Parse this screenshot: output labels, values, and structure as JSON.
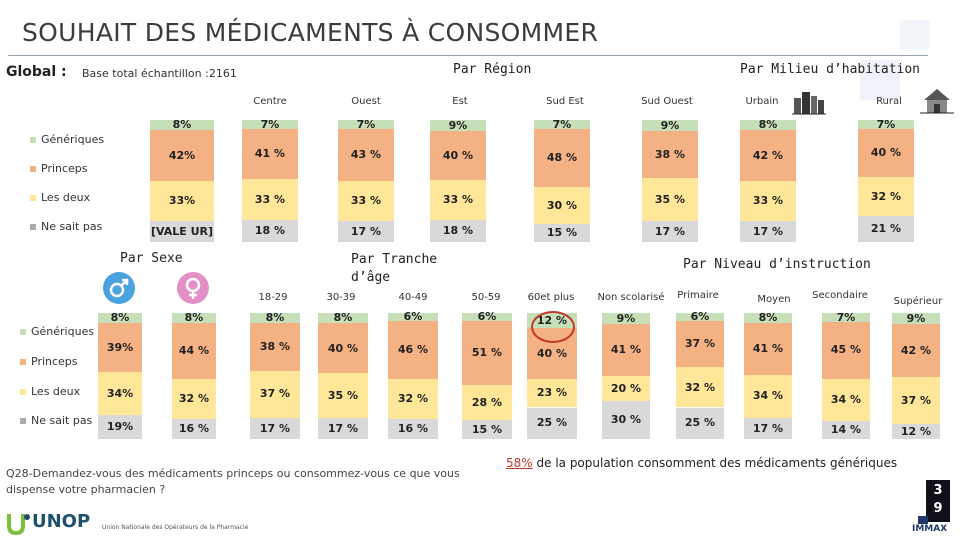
{
  "title": "SOUHAIT DES MÉDICAMENTS À CONSOMMER",
  "global": {
    "label": "Global :",
    "base": "Base total échantillon :2161"
  },
  "sections": {
    "region": "Par Région",
    "milieu": "Par Milieu d’habitation",
    "sexe": "Par Sexe",
    "tranche": "Par Tranche d’âge",
    "niveau": "Par Niveau d’instruction"
  },
  "legend": [
    "Génériques",
    "Princeps",
    "Les deux",
    "Ne sait pas"
  ],
  "colors": {
    "generiques": "#c6dfb9",
    "princeps": "#f4b183",
    "les_deux": "#ffe699",
    "ne_sait_pas": "#d9d9d9",
    "accent": "#c0392b"
  },
  "question": "Q28-Demandez-vous des médicaments princeps ou consommez-vous ce que vous dispense votre pharmacien ?",
  "note": {
    "pct": "58%",
    "text": "de la population consomment des médicaments génériques"
  },
  "page_number": {
    "a": "3",
    "b": "9"
  },
  "logos": {
    "unop": "UNOP",
    "unop_sub": "Union Nationale des Opérateurs de la Pharmacie",
    "immax": "IMMAX"
  },
  "icons": [
    "male-icon",
    "female-icon",
    "urban-icon",
    "rural-icon"
  ],
  "chart_data": [
    {
      "type": "bar",
      "stacked": true,
      "orientation": "vertical",
      "name_note": "Global",
      "categories": [
        "Global"
      ],
      "series": [
        {
          "name": "Génériques",
          "values": [
            8
          ],
          "labels": [
            "8%"
          ]
        },
        {
          "name": "Princeps",
          "values": [
            42
          ],
          "labels": [
            "42%"
          ]
        },
        {
          "name": "Les deux",
          "values": [
            33
          ],
          "labels": [
            "33%"
          ]
        },
        {
          "name": "Ne sait pas",
          "values": [
            17
          ],
          "labels": [
            "[VALE UR]"
          ]
        }
      ]
    },
    {
      "type": "bar",
      "stacked": true,
      "categories": [
        "Centre",
        "Ouest",
        "Est",
        "Sud Est",
        "Sud Ouest",
        "Urbain",
        "Rural"
      ],
      "series": [
        {
          "name": "Génériques",
          "values": [
            7,
            7,
            9,
            7,
            9,
            8,
            7
          ],
          "labels": [
            "7%",
            "7%",
            "9%",
            "7%",
            "9%",
            "8%",
            "7%"
          ]
        },
        {
          "name": "Princeps",
          "values": [
            41,
            43,
            40,
            48,
            38,
            42,
            40
          ],
          "labels": [
            "41 %",
            "43 %",
            "40 %",
            "48 %",
            "38 %",
            "42 %",
            "40 %"
          ]
        },
        {
          "name": "Les deux",
          "values": [
            33,
            33,
            33,
            30,
            35,
            33,
            32
          ],
          "labels": [
            "33 %",
            "33 %",
            "33 %",
            "30 %",
            "35 %",
            "33 %",
            "32 %"
          ]
        },
        {
          "name": "Ne sait pas",
          "values": [
            18,
            17,
            18,
            15,
            17,
            17,
            21
          ],
          "labels": [
            "18 %",
            "17 %",
            "18 %",
            "15 %",
            "17 %",
            "17 %",
            "21 %"
          ]
        }
      ]
    },
    {
      "type": "bar",
      "stacked": true,
      "categories": [
        "Homme",
        "Femme"
      ],
      "series": [
        {
          "name": "Génériques",
          "values": [
            8,
            8
          ],
          "labels": [
            "8%",
            "8%"
          ]
        },
        {
          "name": "Princeps",
          "values": [
            39,
            44
          ],
          "labels": [
            "39%",
            "44 %"
          ]
        },
        {
          "name": "Les deux",
          "values": [
            34,
            32
          ],
          "labels": [
            "34%",
            "32 %"
          ]
        },
        {
          "name": "Ne sait pas",
          "values": [
            19,
            16
          ],
          "labels": [
            "19%",
            "16 %"
          ]
        }
      ]
    },
    {
      "type": "bar",
      "stacked": true,
      "categories": [
        "18-29",
        "30-39",
        "40-49",
        "50-59",
        "60et plus"
      ],
      "series": [
        {
          "name": "Génériques",
          "values": [
            8,
            8,
            6,
            6,
            12
          ],
          "labels": [
            "8%",
            "8%",
            "6%",
            "6%",
            "12 %"
          ]
        },
        {
          "name": "Princeps",
          "values": [
            38,
            40,
            46,
            51,
            40
          ],
          "labels": [
            "38 %",
            "40 %",
            "46 %",
            "51 %",
            "40 %"
          ]
        },
        {
          "name": "Les deux",
          "values": [
            37,
            35,
            32,
            28,
            23
          ],
          "labels": [
            "37 %",
            "35 %",
            "32 %",
            "28 %",
            "23 %"
          ]
        },
        {
          "name": "Ne sait pas",
          "values": [
            17,
            17,
            16,
            15,
            25
          ],
          "labels": [
            "17 %",
            "17 %",
            "16 %",
            "15 %",
            "25 %"
          ]
        }
      ]
    },
    {
      "type": "bar",
      "stacked": true,
      "categories": [
        "Non scolarisé",
        "Primaire",
        "Moyen",
        "Secondaire",
        "Supérieur"
      ],
      "series": [
        {
          "name": "Génériques",
          "values": [
            9,
            6,
            8,
            7,
            9
          ],
          "labels": [
            "9%",
            "6%",
            "8%",
            "7%",
            "9%"
          ]
        },
        {
          "name": "Princeps",
          "values": [
            41,
            37,
            41,
            45,
            42
          ],
          "labels": [
            "41 %",
            "37 %",
            "41 %",
            "45 %",
            "42 %"
          ]
        },
        {
          "name": "Les deux",
          "values": [
            20,
            32,
            34,
            34,
            37
          ],
          "labels": [
            "20 %",
            "32 %",
            "34 %",
            "34 %",
            "37 %"
          ]
        },
        {
          "name": "Ne sait pas",
          "values": [
            30,
            25,
            17,
            14,
            12
          ],
          "labels": [
            "30 %",
            "25 %",
            "17 %",
            "14 %",
            "12 %"
          ]
        }
      ]
    }
  ]
}
